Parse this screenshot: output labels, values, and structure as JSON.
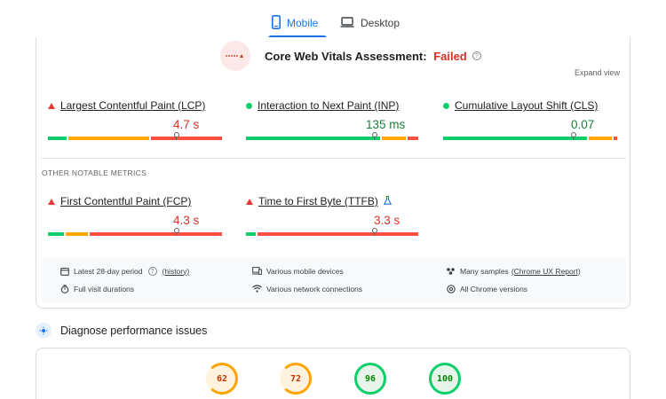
{
  "tabs": {
    "mobile": "Mobile",
    "desktop": "Desktop"
  },
  "assessment": {
    "logo_text": "cwv-logo",
    "title": "Core Web Vitals Assessment:",
    "status": "Failed",
    "expand": "Expand view"
  },
  "core_metrics": [
    {
      "name": "Largest Contentful Paint (LCP)",
      "value": "4.7 s",
      "status": "poor"
    },
    {
      "name": "Interaction to Next Paint (INP)",
      "value": "135 ms",
      "status": "good"
    },
    {
      "name": "Cumulative Layout Shift (CLS)",
      "value": "0.07",
      "status": "good"
    }
  ],
  "other_title": "OTHER NOTABLE METRICS",
  "other_metrics": [
    {
      "name": "First Contentful Paint (FCP)",
      "value": "4.3 s",
      "status": "poor"
    },
    {
      "name": "Time to First Byte (TTFB)",
      "value": "3.3 s",
      "status": "poor"
    }
  ],
  "info": {
    "period": "Latest 28-day period",
    "history": "(history)",
    "devices": "Various mobile devices",
    "samples": "Many samples",
    "samples_link": "(Chrome UX Report)",
    "durations": "Full visit durations",
    "connections": "Various network connections",
    "versions": "All Chrome versions"
  },
  "diagnose": {
    "title": "Diagnose performance issues"
  },
  "scores": [
    "62",
    "72",
    "96",
    "100"
  ],
  "colors": {
    "good": "#0cce6b",
    "needs_improvement": "#ffa400",
    "poor": "#ff4e42",
    "accent": "#1a73e8"
  }
}
